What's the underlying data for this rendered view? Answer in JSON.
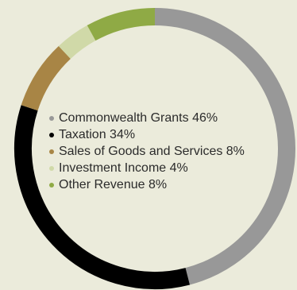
{
  "chart_data": {
    "type": "pie",
    "style": "donut",
    "title": "",
    "legend_position": "inside-center-left",
    "series": [
      {
        "label": "Commonwealth Grants 46%",
        "category": "Commonwealth Grants",
        "value": 46,
        "color": "#989898"
      },
      {
        "label": "Taxation 34%",
        "category": "Taxation",
        "value": 34,
        "color": "#000000"
      },
      {
        "label": "Sales of Goods and Services 8%",
        "category": "Sales of Goods and Services",
        "value": 8,
        "color": "#a88545"
      },
      {
        "label": "Investment Income 4%",
        "category": "Investment Income",
        "value": 4,
        "color": "#d0d9a8"
      },
      {
        "label": "Other Revenue 8%",
        "category": "Other Revenue",
        "value": 8,
        "color": "#8faa45"
      }
    ]
  }
}
